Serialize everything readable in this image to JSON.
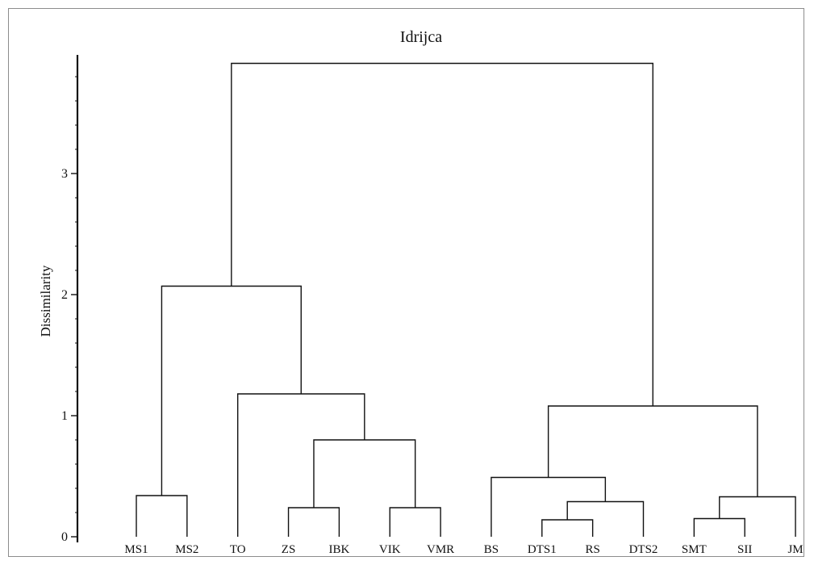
{
  "chart_data": {
    "type": "dendrogram",
    "title": "Idrijca",
    "xlabel": "",
    "ylabel": "Dissimilarity",
    "ylim": [
      0,
      4
    ],
    "yticks": [
      0,
      1,
      2,
      3
    ],
    "grid": false,
    "leaves": [
      "MS1",
      "MS2",
      "TO",
      "ZS",
      "IBK",
      "VIK",
      "VMR",
      "BS",
      "DTS1",
      "RS",
      "DTS2",
      "SMT",
      "SII",
      "JM"
    ],
    "merges": [
      {
        "id": "n1",
        "children": [
          "MS1",
          "MS2"
        ],
        "height": 0.34
      },
      {
        "id": "n2",
        "children": [
          "ZS",
          "IBK"
        ],
        "height": 0.24
      },
      {
        "id": "n3",
        "children": [
          "VIK",
          "VMR"
        ],
        "height": 0.24
      },
      {
        "id": "n4",
        "children": [
          "n2",
          "n3"
        ],
        "height": 0.8
      },
      {
        "id": "n5",
        "children": [
          "TO",
          "n4"
        ],
        "height": 1.18
      },
      {
        "id": "n6",
        "children": [
          "n1",
          "n5"
        ],
        "height": 2.07
      },
      {
        "id": "n7",
        "children": [
          "DTS1",
          "RS"
        ],
        "height": 0.14
      },
      {
        "id": "n8",
        "children": [
          "n7",
          "DTS2"
        ],
        "height": 0.29
      },
      {
        "id": "n9",
        "children": [
          "BS",
          "n8"
        ],
        "height": 0.49
      },
      {
        "id": "n10",
        "children": [
          "SMT",
          "SII"
        ],
        "height": 0.15
      },
      {
        "id": "n11",
        "children": [
          "n10",
          "JM"
        ],
        "height": 0.33
      },
      {
        "id": "n12",
        "children": [
          "n9",
          "n11"
        ],
        "height": 1.08
      },
      {
        "id": "n13",
        "children": [
          "n6",
          "n12"
        ],
        "height": 3.91
      }
    ]
  }
}
